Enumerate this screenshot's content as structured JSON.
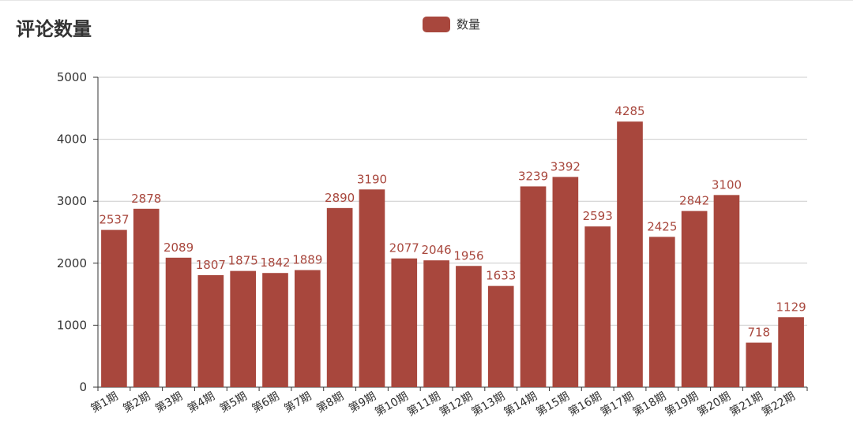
{
  "chart_data": {
    "type": "bar",
    "title": "评论数量",
    "legend": [
      "数量"
    ],
    "legend_position": "top-center",
    "categories": [
      "第1期",
      "第2期",
      "第3期",
      "第4期",
      "第5期",
      "第6期",
      "第7期",
      "第8期",
      "第9期",
      "第10期",
      "第11期",
      "第12期",
      "第13期",
      "第14期",
      "第15期",
      "第16期",
      "第17期",
      "第18期",
      "第19期",
      "第20期",
      "第21期",
      "第22期"
    ],
    "series": [
      {
        "name": "数量",
        "values": [
          2537,
          2878,
          2089,
          1807,
          1875,
          1842,
          1889,
          2890,
          3190,
          2077,
          2046,
          1956,
          1633,
          3239,
          3392,
          2593,
          4285,
          2425,
          2842,
          3100,
          718,
          1129
        ]
      }
    ],
    "ylim": [
      0,
      5000
    ],
    "yticks": [
      0,
      1000,
      2000,
      3000,
      4000,
      5000
    ],
    "grid": true,
    "data_labels": true,
    "colors": {
      "bar": "#a8473d",
      "label": "#a8473d",
      "grid": "#cccccc",
      "axis": "#333333"
    }
  }
}
